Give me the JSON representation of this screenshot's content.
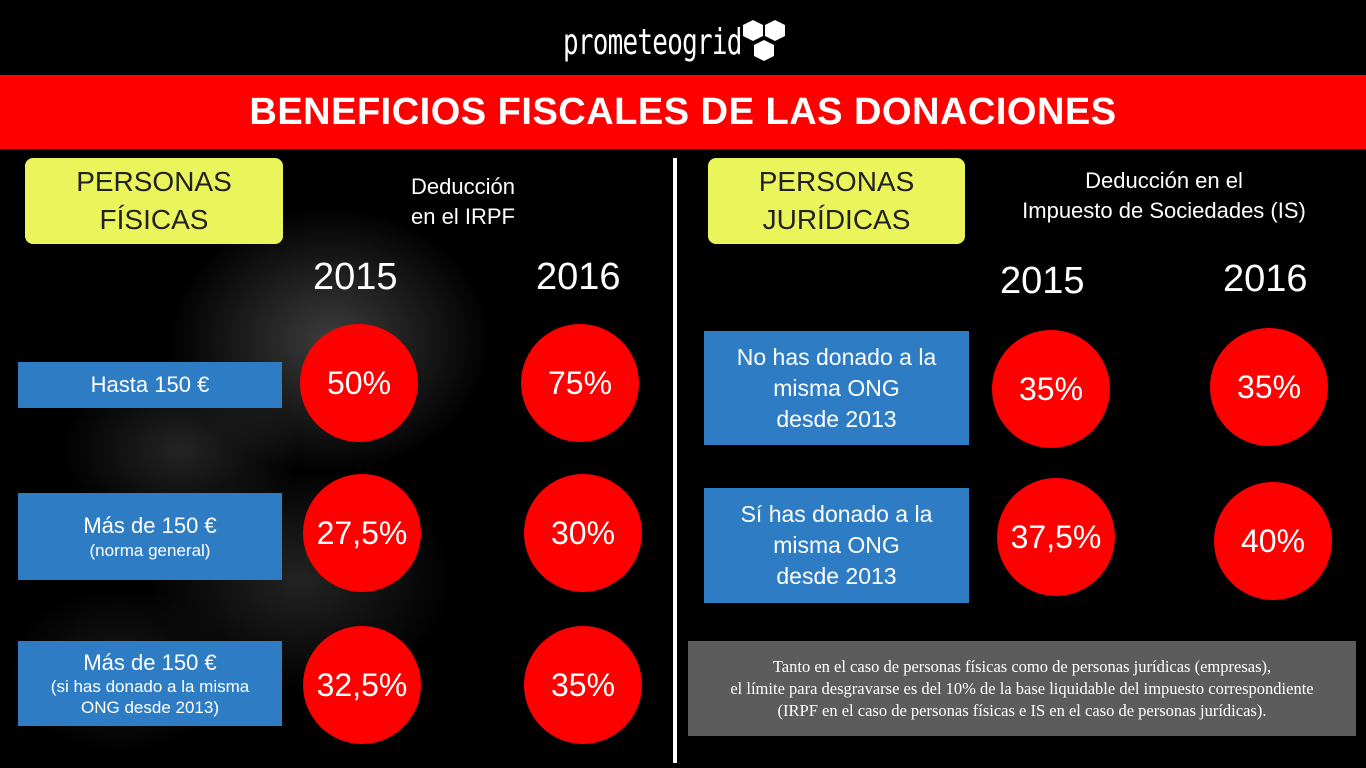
{
  "logo": {
    "text": "prometeogrid",
    "icon": "hexagon-cubes-icon"
  },
  "title": "BENEFICIOS FISCALES DE LAS DONACIONES",
  "left": {
    "category_line1": "PERSONAS",
    "category_line2": "FÍSICAS",
    "deduction_line1": "Deducción",
    "deduction_line2": "en el IRPF",
    "year1": "2015",
    "year2": "2016",
    "rows": [
      {
        "line1": "Hasta 150 €",
        "line2": "",
        "line3": "",
        "v2015": "50%",
        "v2016": "75%"
      },
      {
        "line1": "Más de 150 €",
        "line2": "(norma general)",
        "line3": "",
        "v2015": "27,5%",
        "v2016": "30%"
      },
      {
        "line1": "Más de 150 €",
        "line2": "(si has donado a la misma",
        "line3": "ONG desde 2013)",
        "v2015": "32,5%",
        "v2016": "35%"
      }
    ]
  },
  "right": {
    "category_line1": "PERSONAS",
    "category_line2": "JURÍDICAS",
    "deduction_line1": "Deducción en el",
    "deduction_line2": "Impuesto de Sociedades (IS)",
    "year1": "2015",
    "year2": "2016",
    "rows": [
      {
        "line1": "No has donado a la",
        "line2": "misma ONG",
        "line3": "desde 2013",
        "v2015": "35%",
        "v2016": "35%"
      },
      {
        "line1": "Sí has donado a la",
        "line2": "misma ONG",
        "line3": "desde 2013",
        "v2015": "37,5%",
        "v2016": "40%"
      }
    ]
  },
  "note": {
    "line1": "Tanto en el caso de personas físicas como de personas jurídicas (empresas),",
    "line2": "el límite para desgravarse es del 10% de la base liquidable del impuesto correspondiente",
    "line3": "(IRPF en el caso de personas físicas e IS en el caso de personas jurídicas)."
  },
  "colors": {
    "banner": "#ff0000",
    "circle": "#ff0000",
    "category_box": "#e9f55a",
    "row_box": "#2e7cc4",
    "note_box": "#5c5c5c"
  }
}
